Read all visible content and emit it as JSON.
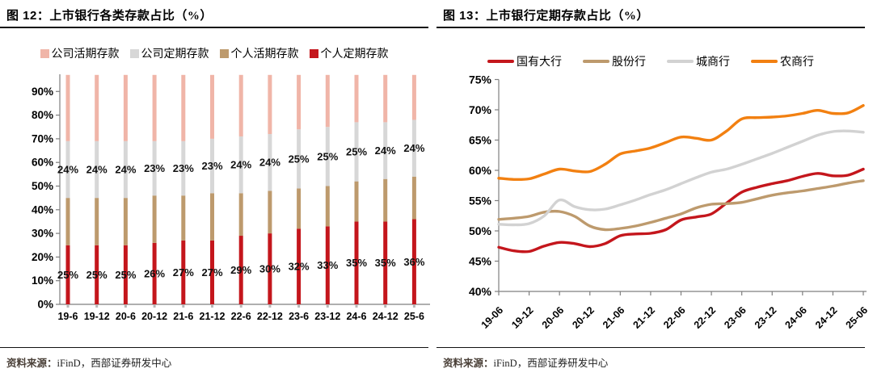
{
  "panels": [
    {
      "figure_label": "图 12：",
      "title": "上市银行各类存款占比（%）",
      "legend": [
        {
          "label": "公司活期存款",
          "color": "#f0b5a8"
        },
        {
          "label": "公司定期存款",
          "color": "#d7d7d7"
        },
        {
          "label": "个人活期存款",
          "color": "#bd9a6d"
        },
        {
          "label": "个人定期存款",
          "color": "#c4161c"
        }
      ],
      "source_label": "资料来源：",
      "source_text": "iFinD，西部证券研发中心",
      "chart_data": {
        "type": "bar",
        "stacked": true,
        "title": "上市银行各类存款占比（%）",
        "categories": [
          "19-6",
          "19-12",
          "20-6",
          "20-12",
          "21-6",
          "21-12",
          "22-6",
          "22-12",
          "23-6",
          "23-12",
          "24-6",
          "24-12",
          "25-6"
        ],
        "yticks": [
          "0%",
          "10%",
          "20%",
          "30%",
          "40%",
          "50%",
          "60%",
          "70%",
          "80%",
          "90%"
        ],
        "ylim": [
          0,
          100
        ],
        "grid": false,
        "series": [
          {
            "name": "个人定期存款",
            "color": "#c4161c",
            "show_labels": true,
            "values": [
              25,
              25,
              25,
              26,
              27,
              27,
              29,
              30,
              32,
              33,
              35,
              35,
              36
            ],
            "labels": [
              "25%",
              "25%",
              "25%",
              "26%",
              "27%",
              "27%",
              "29%",
              "30%",
              "32%",
              "33%",
              "35%",
              "35%",
              "36%"
            ]
          },
          {
            "name": "个人活期存款",
            "color": "#bd9a6d",
            "show_labels": false,
            "values": [
              20,
              20,
              20,
              20,
              19,
              20,
              18,
              18,
              17,
              17,
              17,
              18,
              18
            ]
          },
          {
            "name": "公司定期存款",
            "color": "#d7d7d7",
            "show_labels": true,
            "values": [
              24,
              24,
              24,
              23,
              23,
              23,
              24,
              24,
              25,
              25,
              25,
              24,
              24
            ],
            "labels": [
              "24%",
              "24%",
              "24%",
              "23%",
              "23%",
              "23%",
              "24%",
              "24%",
              "25%",
              "25%",
              "25%",
              "24%",
              "24%"
            ]
          },
          {
            "name": "公司活期存款",
            "color": "#f0b5a8",
            "show_labels": false,
            "values": [
              28,
              28,
              28,
              28,
              28,
              27,
              26,
              25,
              23,
              22,
              20,
              20,
              19
            ]
          }
        ]
      }
    },
    {
      "figure_label": "图 13：",
      "title": "上市银行定期存款占比（%）",
      "legend": [
        {
          "label": "国有大行",
          "color": "#c4161c"
        },
        {
          "label": "股份行",
          "color": "#bd9a6d"
        },
        {
          "label": "城商行",
          "color": "#d2d2d2"
        },
        {
          "label": "农商行",
          "color": "#f28011"
        }
      ],
      "source_label": "资料来源：",
      "source_text": "iFinD，西部证券研发中心",
      "chart_data": {
        "type": "line",
        "title": "上市银行定期存款占比（%）",
        "x_labels": [
          "19-06",
          "19-12",
          "20-06",
          "20-12",
          "21-06",
          "21-12",
          "22-06",
          "22-12",
          "23-06",
          "23-12",
          "24-06",
          "24-12",
          "25-06"
        ],
        "x_label_every_n_points": 2,
        "yticks": [
          "40%",
          "45%",
          "50%",
          "55%",
          "60%",
          "65%",
          "70%",
          "75%"
        ],
        "ylim": [
          40,
          75
        ],
        "grid": false,
        "legend_position": "top",
        "series": [
          {
            "name": "国有大行",
            "color": "#c4161c",
            "values": [
              47.3,
              46.7,
              46.6,
              47.5,
              48.1,
              47.9,
              47.4,
              47.9,
              49.2,
              49.5,
              49.6,
              50.2,
              51.8,
              52.3,
              52.8,
              54.6,
              56.4,
              57.2,
              57.8,
              58.3,
              59.0,
              59.5,
              59.1,
              59.2,
              60.2
            ]
          },
          {
            "name": "股份行",
            "color": "#bd9a6d",
            "values": [
              51.9,
              52.1,
              52.4,
              53.1,
              53.2,
              52.4,
              50.8,
              50.2,
              50.4,
              50.8,
              51.4,
              52.1,
              52.8,
              53.8,
              54.4,
              54.5,
              54.7,
              55.3,
              55.9,
              56.3,
              56.6,
              57.0,
              57.4,
              57.9,
              58.3
            ]
          },
          {
            "name": "城商行",
            "color": "#d2d2d2",
            "values": [
              51.1,
              51.0,
              51.2,
              52.5,
              55.1,
              54.0,
              53.5,
              53.6,
              54.3,
              55.1,
              56.0,
              56.8,
              57.8,
              58.8,
              59.7,
              60.2,
              61.0,
              61.9,
              62.8,
              63.8,
              64.8,
              65.8,
              66.4,
              66.5,
              66.3
            ]
          },
          {
            "name": "农商行",
            "color": "#f28011",
            "values": [
              58.7,
              58.5,
              58.6,
              59.4,
              60.2,
              59.9,
              59.8,
              61.0,
              62.7,
              63.2,
              63.7,
              64.6,
              65.5,
              65.3,
              65.0,
              66.5,
              68.5,
              68.7,
              68.8,
              69.0,
              69.4,
              69.9,
              69.4,
              69.5,
              70.7
            ]
          }
        ]
      }
    }
  ]
}
